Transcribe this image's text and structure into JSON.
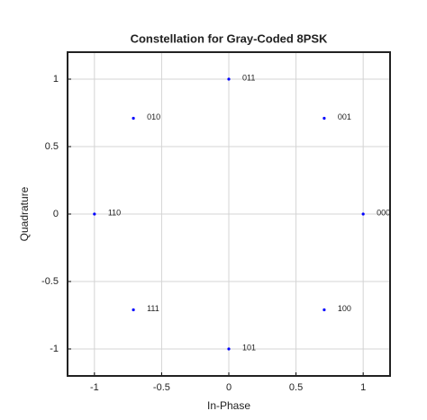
{
  "chart_data": {
    "type": "scatter",
    "title": "Constellation for Gray-Coded 8PSK",
    "xlabel": "In-Phase",
    "ylabel": "Quadrature",
    "x": [
      1,
      0.71,
      0,
      -0.71,
      -1,
      -0.71,
      0,
      0.71
    ],
    "values": [
      0,
      0.71,
      1,
      0.71,
      0,
      -0.71,
      -1,
      -0.71
    ],
    "point_labels": [
      "000",
      "001",
      "011",
      "010",
      "110",
      "111",
      "101",
      "100"
    ],
    "color": "#0000ff",
    "xlim": [
      -1.2,
      1.2
    ],
    "xticks": [
      -1,
      -0.5,
      0,
      0.5,
      1
    ],
    "ylim": [
      -1.2,
      1.2
    ],
    "yticks": [
      -1,
      -0.5,
      0,
      0.5,
      1
    ],
    "grid": true
  }
}
